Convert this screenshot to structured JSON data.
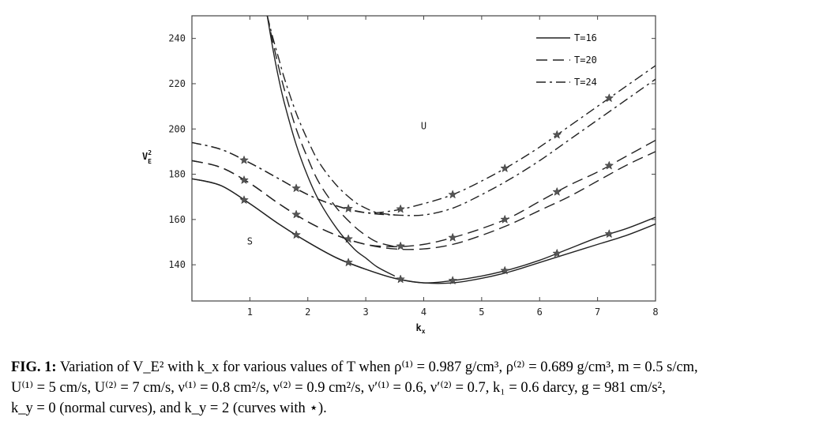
{
  "chart_data": {
    "type": "line",
    "xlabel": "k",
    "xlabel_sub": "x",
    "ylabel": "V",
    "ylabel_sup": "2",
    "ylabel_sub": "E",
    "xlim": [
      0,
      8
    ],
    "ylim": [
      124,
      250
    ],
    "xticks": [
      1,
      2,
      3,
      4,
      5,
      6,
      7,
      8
    ],
    "yticks": [
      140,
      160,
      180,
      200,
      220,
      240
    ],
    "grid": false,
    "legend_position": "top-right",
    "legend": [
      {
        "label": "T=16",
        "style": "solid"
      },
      {
        "label": "T=20",
        "style": "dashed"
      },
      {
        "label": "T=24",
        "style": "dashdot"
      }
    ],
    "annotations": [
      {
        "text": "U",
        "x": 4.0,
        "y": 200
      },
      {
        "text": "S",
        "x": 1.0,
        "y": 149
      }
    ],
    "star_x": [
      0.9,
      1.8,
      2.7,
      3.6,
      4.5,
      5.4,
      6.3,
      7.2
    ],
    "series": [
      {
        "name": "T=16",
        "style": "solid",
        "stars": false,
        "x": [
          0,
          0.5,
          1,
          1.5,
          2,
          2.5,
          3,
          3.5,
          4,
          4.5,
          5,
          5.5,
          6,
          6.5,
          7,
          7.5,
          8
        ],
        "y": [
          178,
          175,
          167,
          158,
          150,
          143,
          138,
          134,
          132,
          132,
          134,
          137,
          141,
          145,
          149,
          153,
          158
        ]
      },
      {
        "name": "T=16",
        "style": "solid",
        "stars": true,
        "x": [
          0,
          0.5,
          1,
          1.5,
          2,
          2.5,
          3,
          3.5,
          4,
          4.5,
          5,
          5.5,
          6,
          6.5,
          7,
          7.5,
          8
        ],
        "y": [
          178,
          175,
          167,
          158,
          150,
          143,
          138,
          134,
          132,
          133,
          135,
          138,
          142,
          147,
          152,
          156,
          161
        ]
      },
      {
        "name": "T=20",
        "style": "dashed",
        "stars": false,
        "x": [
          0,
          0.5,
          1,
          1.5,
          2,
          2.5,
          3,
          3.5,
          4,
          4.5,
          5,
          5.5,
          6,
          6.5,
          7,
          7.5,
          8
        ],
        "y": [
          186,
          183,
          176,
          167,
          159,
          153,
          149,
          147,
          147,
          149,
          153,
          158,
          164,
          170,
          177,
          184,
          190
        ]
      },
      {
        "name": "T=20",
        "style": "dashed",
        "stars": true,
        "x": [
          0,
          0.5,
          1,
          1.5,
          2,
          2.5,
          3,
          3.5,
          4,
          4.5,
          5,
          5.5,
          6,
          6.5,
          7,
          7.5,
          8
        ],
        "y": [
          186,
          183,
          176,
          167,
          159,
          153,
          149,
          148,
          149,
          152,
          156,
          161,
          168,
          175,
          181,
          188,
          195
        ]
      },
      {
        "name": "T=24",
        "style": "dashdot",
        "stars": false,
        "x": [
          0,
          0.5,
          1,
          1.5,
          2,
          2.5,
          3,
          3.5,
          4,
          4.5,
          5,
          5.5,
          6,
          6.5,
          7,
          7.5,
          8
        ],
        "y": [
          194,
          191,
          185,
          178,
          171,
          166,
          163,
          162,
          162,
          165,
          171,
          178,
          186,
          195,
          204,
          213,
          222
        ]
      },
      {
        "name": "T=24",
        "style": "dashdot",
        "stars": true,
        "x": [
          0,
          0.5,
          1,
          1.5,
          2,
          2.5,
          3,
          3.5,
          4,
          4.5,
          5,
          5.5,
          6,
          6.5,
          7,
          7.5,
          8
        ],
        "y": [
          194,
          191,
          185,
          178,
          171,
          166,
          163,
          164,
          167,
          171,
          177,
          184,
          192,
          201,
          210,
          219,
          228
        ]
      },
      {
        "name": "",
        "style": "solid",
        "stars": false,
        "x": [
          1.3,
          1.4,
          1.5,
          1.6,
          1.8,
          2.0,
          2.2,
          2.5,
          2.8,
          3.0,
          3.2,
          3.5
        ],
        "y": [
          250,
          235,
          222,
          211,
          193,
          179,
          168,
          156,
          147,
          143,
          139,
          135
        ]
      },
      {
        "name": "",
        "style": "dashed",
        "stars": false,
        "x": [
          1.3,
          1.4,
          1.5,
          1.6,
          1.8,
          2.0,
          2.2,
          2.5,
          2.8,
          3.0,
          3.2,
          3.5
        ],
        "y": [
          250,
          238,
          227,
          217,
          200,
          187,
          176,
          165,
          157,
          153,
          150,
          148
        ]
      },
      {
        "name": "",
        "style": "dashdot",
        "stars": false,
        "x": [
          1.3,
          1.4,
          1.5,
          1.6,
          1.8,
          2.0,
          2.2,
          2.5,
          2.8,
          3.0,
          3.2,
          3.5
        ],
        "y": [
          250,
          240,
          231,
          222,
          207,
          195,
          185,
          175,
          168,
          165,
          163,
          162
        ]
      }
    ]
  },
  "caption": {
    "fig_label": "FIG. 1:",
    "line1": " Variation of V_E² with k_x for various values of T when ρ⁽¹⁾ = 0.987 g/cm³, ρ⁽²⁾ = 0.689 g/cm³, m = 0.5 s/cm,",
    "line2": "U⁽¹⁾ = 5 cm/s, U⁽²⁾ = 7 cm/s, ν⁽¹⁾ = 0.8 cm²/s, ν⁽²⁾ = 0.9 cm²/s, ν′⁽¹⁾ = 0.6, ν′⁽²⁾ = 0.7, k₁ = 0.6 darcy, g = 981 cm/s²,",
    "line3": "k_y = 0 (normal curves), and k_y = 2 (curves with ⋆)."
  }
}
